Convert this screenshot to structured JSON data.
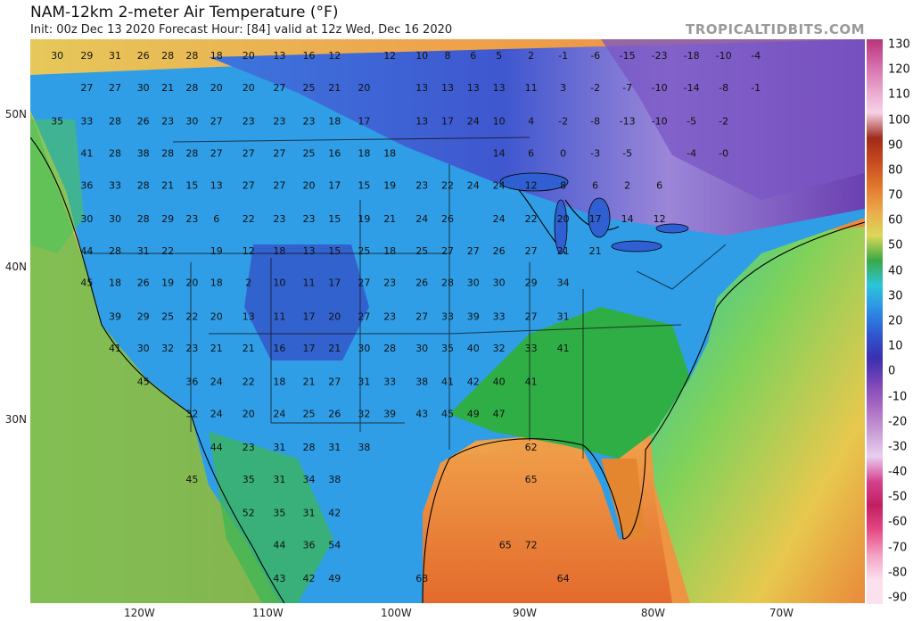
{
  "header": {
    "title": "NAM-12km 2-meter Air Temperature (°F)",
    "subtitle": "Init: 00z Dec 13 2020   Forecast Hour: [84]   valid at 12z Wed, Dec 16 2020",
    "brand": "TROPICALTIDBITS.COM"
  },
  "axes": {
    "lat_labels": [
      "50N",
      "40N",
      "30N"
    ],
    "lon_labels": [
      "120W",
      "110W",
      "100W",
      "90W",
      "80W",
      "70W"
    ]
  },
  "colorbar": {
    "labels": [
      "130",
      "120",
      "110",
      "100",
      "90",
      "80",
      "70",
      "60",
      "50",
      "40",
      "30",
      "20",
      "10",
      "0",
      "-10",
      "-20",
      "-30",
      "-40",
      "-50",
      "-60",
      "-70",
      "-80",
      "-90"
    ],
    "colors": [
      "#b9347a",
      "#d36aa8",
      "#e8a2cb",
      "#f6d3e7",
      "#a02a1a",
      "#c84a20",
      "#e2782e",
      "#eca94a",
      "#dcd85a",
      "#3aa843",
      "#2bc6d9",
      "#2e8fe6",
      "#2f58cf",
      "#3a2fb0",
      "#7b46b6",
      "#a96bc4",
      "#c99ed6",
      "#e9d0ef",
      "#d4428e",
      "#c11e60",
      "#e54b85",
      "#f3a0c2",
      "#fbe0ee"
    ]
  },
  "temperature_labels": [
    {
      "v": "30",
      "lon": -126.4,
      "lat": 53.7
    },
    {
      "v": "29",
      "lon": -124.1,
      "lat": 53.7
    },
    {
      "v": "31",
      "lon": -121.9,
      "lat": 53.7
    },
    {
      "v": "26",
      "lon": -119.7,
      "lat": 53.7
    },
    {
      "v": "28",
      "lon": -117.8,
      "lat": 53.7
    },
    {
      "v": "28",
      "lon": -115.9,
      "lat": 53.7
    },
    {
      "v": "18",
      "lon": -114.0,
      "lat": 53.7
    },
    {
      "v": "20",
      "lon": -111.5,
      "lat": 53.7
    },
    {
      "v": "13",
      "lon": -109.1,
      "lat": 53.7
    },
    {
      "v": "16",
      "lon": -106.8,
      "lat": 53.7
    },
    {
      "v": "12",
      "lon": -104.8,
      "lat": 53.7
    },
    {
      "v": "12",
      "lon": -100.5,
      "lat": 53.7
    },
    {
      "v": "10",
      "lon": -98.0,
      "lat": 53.7
    },
    {
      "v": "8",
      "lon": -96.0,
      "lat": 53.7
    },
    {
      "v": "6",
      "lon": -94.0,
      "lat": 53.7
    },
    {
      "v": "5",
      "lon": -92.0,
      "lat": 53.7
    },
    {
      "v": "2",
      "lon": -89.5,
      "lat": 53.7
    },
    {
      "v": "-1",
      "lon": -87.0,
      "lat": 53.7
    },
    {
      "v": "-6",
      "lon": -84.5,
      "lat": 53.7
    },
    {
      "v": "-15",
      "lon": -82.0,
      "lat": 53.7
    },
    {
      "v": "-23",
      "lon": -79.5,
      "lat": 53.7
    },
    {
      "v": "-18",
      "lon": -77.0,
      "lat": 53.7
    },
    {
      "v": "-10",
      "lon": -74.5,
      "lat": 53.7
    },
    {
      "v": "-4",
      "lon": -72.0,
      "lat": 53.7
    },
    {
      "v": "27",
      "lon": -124.1,
      "lat": 51.6
    },
    {
      "v": "27",
      "lon": -121.9,
      "lat": 51.6
    },
    {
      "v": "30",
      "lon": -119.7,
      "lat": 51.6
    },
    {
      "v": "21",
      "lon": -117.8,
      "lat": 51.6
    },
    {
      "v": "28",
      "lon": -115.9,
      "lat": 51.6
    },
    {
      "v": "20",
      "lon": -114.0,
      "lat": 51.6
    },
    {
      "v": "20",
      "lon": -111.5,
      "lat": 51.6
    },
    {
      "v": "27",
      "lon": -109.1,
      "lat": 51.6
    },
    {
      "v": "25",
      "lon": -106.8,
      "lat": 51.6
    },
    {
      "v": "21",
      "lon": -104.8,
      "lat": 51.6
    },
    {
      "v": "20",
      "lon": -102.5,
      "lat": 51.6
    },
    {
      "v": "13",
      "lon": -98.0,
      "lat": 51.6
    },
    {
      "v": "13",
      "lon": -96.0,
      "lat": 51.6
    },
    {
      "v": "13",
      "lon": -94.0,
      "lat": 51.6
    },
    {
      "v": "13",
      "lon": -92.0,
      "lat": 51.6
    },
    {
      "v": "11",
      "lon": -89.5,
      "lat": 51.6
    },
    {
      "v": "3",
      "lon": -87.0,
      "lat": 51.6
    },
    {
      "v": "-2",
      "lon": -84.5,
      "lat": 51.6
    },
    {
      "v": "-7",
      "lon": -82.0,
      "lat": 51.6
    },
    {
      "v": "-10",
      "lon": -79.5,
      "lat": 51.6
    },
    {
      "v": "-14",
      "lon": -77.0,
      "lat": 51.6
    },
    {
      "v": "-8",
      "lon": -74.5,
      "lat": 51.6
    },
    {
      "v": "-1",
      "lon": -72.0,
      "lat": 51.6
    },
    {
      "v": "35",
      "lon": -126.4,
      "lat": 49.4
    },
    {
      "v": "33",
      "lon": -124.1,
      "lat": 49.4
    },
    {
      "v": "28",
      "lon": -121.9,
      "lat": 49.4
    },
    {
      "v": "26",
      "lon": -119.7,
      "lat": 49.4
    },
    {
      "v": "23",
      "lon": -117.8,
      "lat": 49.4
    },
    {
      "v": "30",
      "lon": -115.9,
      "lat": 49.4
    },
    {
      "v": "27",
      "lon": -114.0,
      "lat": 49.4
    },
    {
      "v": "23",
      "lon": -111.5,
      "lat": 49.4
    },
    {
      "v": "23",
      "lon": -109.1,
      "lat": 49.4
    },
    {
      "v": "23",
      "lon": -106.8,
      "lat": 49.4
    },
    {
      "v": "18",
      "lon": -104.8,
      "lat": 49.4
    },
    {
      "v": "17",
      "lon": -102.5,
      "lat": 49.4
    },
    {
      "v": "13",
      "lon": -98.0,
      "lat": 49.4
    },
    {
      "v": "17",
      "lon": -96.0,
      "lat": 49.4
    },
    {
      "v": "24",
      "lon": -94.0,
      "lat": 49.4
    },
    {
      "v": "10",
      "lon": -92.0,
      "lat": 49.4
    },
    {
      "v": "4",
      "lon": -89.5,
      "lat": 49.4
    },
    {
      "v": "-2",
      "lon": -87.0,
      "lat": 49.4
    },
    {
      "v": "-8",
      "lon": -84.5,
      "lat": 49.4
    },
    {
      "v": "-13",
      "lon": -82.0,
      "lat": 49.4
    },
    {
      "v": "-10",
      "lon": -79.5,
      "lat": 49.4
    },
    {
      "v": "-5",
      "lon": -77.0,
      "lat": 49.4
    },
    {
      "v": "-2",
      "lon": -74.5,
      "lat": 49.4
    },
    {
      "v": "41",
      "lon": -124.1,
      "lat": 47.3
    },
    {
      "v": "28",
      "lon": -121.9,
      "lat": 47.3
    },
    {
      "v": "38",
      "lon": -119.7,
      "lat": 47.3
    },
    {
      "v": "28",
      "lon": -117.8,
      "lat": 47.3
    },
    {
      "v": "28",
      "lon": -115.9,
      "lat": 47.3
    },
    {
      "v": "27",
      "lon": -114.0,
      "lat": 47.3
    },
    {
      "v": "27",
      "lon": -111.5,
      "lat": 47.3
    },
    {
      "v": "27",
      "lon": -109.1,
      "lat": 47.3
    },
    {
      "v": "25",
      "lon": -106.8,
      "lat": 47.3
    },
    {
      "v": "16",
      "lon": -104.8,
      "lat": 47.3
    },
    {
      "v": "18",
      "lon": -102.5,
      "lat": 47.3
    },
    {
      "v": "18",
      "lon": -100.5,
      "lat": 47.3
    },
    {
      "v": "14",
      "lon": -92.0,
      "lat": 47.3
    },
    {
      "v": "6",
      "lon": -89.5,
      "lat": 47.3
    },
    {
      "v": "0",
      "lon": -87.0,
      "lat": 47.3
    },
    {
      "v": "-3",
      "lon": -84.5,
      "lat": 47.3
    },
    {
      "v": "-5",
      "lon": -82.0,
      "lat": 47.3
    },
    {
      "v": "-4",
      "lon": -77.0,
      "lat": 47.3
    },
    {
      "v": "-0",
      "lon": -74.5,
      "lat": 47.3
    },
    {
      "v": "36",
      "lon": -124.1,
      "lat": 45.2
    },
    {
      "v": "33",
      "lon": -121.9,
      "lat": 45.2
    },
    {
      "v": "28",
      "lon": -119.7,
      "lat": 45.2
    },
    {
      "v": "21",
      "lon": -117.8,
      "lat": 45.2
    },
    {
      "v": "15",
      "lon": -115.9,
      "lat": 45.2
    },
    {
      "v": "13",
      "lon": -114.0,
      "lat": 45.2
    },
    {
      "v": "27",
      "lon": -111.5,
      "lat": 45.2
    },
    {
      "v": "27",
      "lon": -109.1,
      "lat": 45.2
    },
    {
      "v": "20",
      "lon": -106.8,
      "lat": 45.2
    },
    {
      "v": "17",
      "lon": -104.8,
      "lat": 45.2
    },
    {
      "v": "15",
      "lon": -102.5,
      "lat": 45.2
    },
    {
      "v": "19",
      "lon": -100.5,
      "lat": 45.2
    },
    {
      "v": "23",
      "lon": -98.0,
      "lat": 45.2
    },
    {
      "v": "22",
      "lon": -96.0,
      "lat": 45.2
    },
    {
      "v": "24",
      "lon": -94.0,
      "lat": 45.2
    },
    {
      "v": "24",
      "lon": -92.0,
      "lat": 45.2
    },
    {
      "v": "12",
      "lon": -89.5,
      "lat": 45.2
    },
    {
      "v": "8",
      "lon": -87.0,
      "lat": 45.2
    },
    {
      "v": "6",
      "lon": -84.5,
      "lat": 45.2
    },
    {
      "v": "2",
      "lon": -82.0,
      "lat": 45.2
    },
    {
      "v": "6",
      "lon": -79.5,
      "lat": 45.2
    },
    {
      "v": "30",
      "lon": -124.1,
      "lat": 43.0
    },
    {
      "v": "30",
      "lon": -121.9,
      "lat": 43.0
    },
    {
      "v": "28",
      "lon": -119.7,
      "lat": 43.0
    },
    {
      "v": "29",
      "lon": -117.8,
      "lat": 43.0
    },
    {
      "v": "23",
      "lon": -115.9,
      "lat": 43.0
    },
    {
      "v": "6",
      "lon": -114.0,
      "lat": 43.0
    },
    {
      "v": "22",
      "lon": -111.5,
      "lat": 43.0
    },
    {
      "v": "23",
      "lon": -109.1,
      "lat": 43.0
    },
    {
      "v": "23",
      "lon": -106.8,
      "lat": 43.0
    },
    {
      "v": "15",
      "lon": -104.8,
      "lat": 43.0
    },
    {
      "v": "19",
      "lon": -102.5,
      "lat": 43.0
    },
    {
      "v": "21",
      "lon": -100.5,
      "lat": 43.0
    },
    {
      "v": "24",
      "lon": -98.0,
      "lat": 43.0
    },
    {
      "v": "26",
      "lon": -96.0,
      "lat": 43.0
    },
    {
      "v": "24",
      "lon": -92.0,
      "lat": 43.0
    },
    {
      "v": "22",
      "lon": -89.5,
      "lat": 43.0
    },
    {
      "v": "20",
      "lon": -87.0,
      "lat": 43.0
    },
    {
      "v": "17",
      "lon": -84.5,
      "lat": 43.0
    },
    {
      "v": "14",
      "lon": -82.0,
      "lat": 43.0
    },
    {
      "v": "12",
      "lon": -79.5,
      "lat": 43.0
    },
    {
      "v": "44",
      "lon": -124.1,
      "lat": 40.9
    },
    {
      "v": "28",
      "lon": -121.9,
      "lat": 40.9
    },
    {
      "v": "31",
      "lon": -119.7,
      "lat": 40.9
    },
    {
      "v": "22",
      "lon": -117.8,
      "lat": 40.9
    },
    {
      "v": "19",
      "lon": -114.0,
      "lat": 40.9
    },
    {
      "v": "12",
      "lon": -111.5,
      "lat": 40.9
    },
    {
      "v": "18",
      "lon": -109.1,
      "lat": 40.9
    },
    {
      "v": "13",
      "lon": -106.8,
      "lat": 40.9
    },
    {
      "v": "15",
      "lon": -104.8,
      "lat": 40.9
    },
    {
      "v": "25",
      "lon": -102.5,
      "lat": 40.9
    },
    {
      "v": "18",
      "lon": -100.5,
      "lat": 40.9
    },
    {
      "v": "25",
      "lon": -98.0,
      "lat": 40.9
    },
    {
      "v": "27",
      "lon": -96.0,
      "lat": 40.9
    },
    {
      "v": "27",
      "lon": -94.0,
      "lat": 40.9
    },
    {
      "v": "26",
      "lon": -92.0,
      "lat": 40.9
    },
    {
      "v": "27",
      "lon": -89.5,
      "lat": 40.9
    },
    {
      "v": "21",
      "lon": -87.0,
      "lat": 40.9
    },
    {
      "v": "21",
      "lon": -84.5,
      "lat": 40.9
    },
    {
      "v": "45",
      "lon": -124.1,
      "lat": 38.8
    },
    {
      "v": "18",
      "lon": -121.9,
      "lat": 38.8
    },
    {
      "v": "26",
      "lon": -119.7,
      "lat": 38.8
    },
    {
      "v": "19",
      "lon": -117.8,
      "lat": 38.8
    },
    {
      "v": "20",
      "lon": -115.9,
      "lat": 38.8
    },
    {
      "v": "18",
      "lon": -114.0,
      "lat": 38.8
    },
    {
      "v": "2",
      "lon": -111.5,
      "lat": 38.8
    },
    {
      "v": "10",
      "lon": -109.1,
      "lat": 38.8
    },
    {
      "v": "11",
      "lon": -106.8,
      "lat": 38.8
    },
    {
      "v": "17",
      "lon": -104.8,
      "lat": 38.8
    },
    {
      "v": "27",
      "lon": -102.5,
      "lat": 38.8
    },
    {
      "v": "23",
      "lon": -100.5,
      "lat": 38.8
    },
    {
      "v": "26",
      "lon": -98.0,
      "lat": 38.8
    },
    {
      "v": "28",
      "lon": -96.0,
      "lat": 38.8
    },
    {
      "v": "30",
      "lon": -94.0,
      "lat": 38.8
    },
    {
      "v": "30",
      "lon": -92.0,
      "lat": 38.8
    },
    {
      "v": "29",
      "lon": -89.5,
      "lat": 38.8
    },
    {
      "v": "34",
      "lon": -87.0,
      "lat": 38.8
    },
    {
      "v": "39",
      "lon": -121.9,
      "lat": 36.6
    },
    {
      "v": "29",
      "lon": -119.7,
      "lat": 36.6
    },
    {
      "v": "25",
      "lon": -117.8,
      "lat": 36.6
    },
    {
      "v": "22",
      "lon": -115.9,
      "lat": 36.6
    },
    {
      "v": "20",
      "lon": -114.0,
      "lat": 36.6
    },
    {
      "v": "13",
      "lon": -111.5,
      "lat": 36.6
    },
    {
      "v": "11",
      "lon": -109.1,
      "lat": 36.6
    },
    {
      "v": "17",
      "lon": -106.8,
      "lat": 36.6
    },
    {
      "v": "20",
      "lon": -104.8,
      "lat": 36.6
    },
    {
      "v": "27",
      "lon": -102.5,
      "lat": 36.6
    },
    {
      "v": "23",
      "lon": -100.5,
      "lat": 36.6
    },
    {
      "v": "27",
      "lon": -98.0,
      "lat": 36.6
    },
    {
      "v": "33",
      "lon": -96.0,
      "lat": 36.6
    },
    {
      "v": "39",
      "lon": -94.0,
      "lat": 36.6
    },
    {
      "v": "33",
      "lon": -92.0,
      "lat": 36.6
    },
    {
      "v": "27",
      "lon": -89.5,
      "lat": 36.6
    },
    {
      "v": "31",
      "lon": -87.0,
      "lat": 36.6
    },
    {
      "v": "41",
      "lon": -121.9,
      "lat": 34.5
    },
    {
      "v": "30",
      "lon": -119.7,
      "lat": 34.5
    },
    {
      "v": "32",
      "lon": -117.8,
      "lat": 34.5
    },
    {
      "v": "23",
      "lon": -115.9,
      "lat": 34.5
    },
    {
      "v": "21",
      "lon": -114.0,
      "lat": 34.5
    },
    {
      "v": "21",
      "lon": -111.5,
      "lat": 34.5
    },
    {
      "v": "16",
      "lon": -109.1,
      "lat": 34.5
    },
    {
      "v": "17",
      "lon": -106.8,
      "lat": 34.5
    },
    {
      "v": "21",
      "lon": -104.8,
      "lat": 34.5
    },
    {
      "v": "30",
      "lon": -102.5,
      "lat": 34.5
    },
    {
      "v": "28",
      "lon": -100.5,
      "lat": 34.5
    },
    {
      "v": "30",
      "lon": -98.0,
      "lat": 34.5
    },
    {
      "v": "35",
      "lon": -96.0,
      "lat": 34.5
    },
    {
      "v": "40",
      "lon": -94.0,
      "lat": 34.5
    },
    {
      "v": "32",
      "lon": -92.0,
      "lat": 34.5
    },
    {
      "v": "33",
      "lon": -89.5,
      "lat": 34.5
    },
    {
      "v": "41",
      "lon": -87.0,
      "lat": 34.5
    },
    {
      "v": "45",
      "lon": -119.7,
      "lat": 32.3
    },
    {
      "v": "36",
      "lon": -115.9,
      "lat": 32.3
    },
    {
      "v": "24",
      "lon": -114.0,
      "lat": 32.3
    },
    {
      "v": "22",
      "lon": -111.5,
      "lat": 32.3
    },
    {
      "v": "18",
      "lon": -109.1,
      "lat": 32.3
    },
    {
      "v": "21",
      "lon": -106.8,
      "lat": 32.3
    },
    {
      "v": "27",
      "lon": -104.8,
      "lat": 32.3
    },
    {
      "v": "31",
      "lon": -102.5,
      "lat": 32.3
    },
    {
      "v": "33",
      "lon": -100.5,
      "lat": 32.3
    },
    {
      "v": "38",
      "lon": -98.0,
      "lat": 32.3
    },
    {
      "v": "41",
      "lon": -96.0,
      "lat": 32.3
    },
    {
      "v": "42",
      "lon": -94.0,
      "lat": 32.3
    },
    {
      "v": "40",
      "lon": -92.0,
      "lat": 32.3
    },
    {
      "v": "41",
      "lon": -89.5,
      "lat": 32.3
    },
    {
      "v": "32",
      "lon": -115.9,
      "lat": 30.2
    },
    {
      "v": "24",
      "lon": -114.0,
      "lat": 30.2
    },
    {
      "v": "20",
      "lon": -111.5,
      "lat": 30.2
    },
    {
      "v": "24",
      "lon": -109.1,
      "lat": 30.2
    },
    {
      "v": "25",
      "lon": -106.8,
      "lat": 30.2
    },
    {
      "v": "26",
      "lon": -104.8,
      "lat": 30.2
    },
    {
      "v": "32",
      "lon": -102.5,
      "lat": 30.2
    },
    {
      "v": "39",
      "lon": -100.5,
      "lat": 30.2
    },
    {
      "v": "43",
      "lon": -98.0,
      "lat": 30.2
    },
    {
      "v": "45",
      "lon": -96.0,
      "lat": 30.2
    },
    {
      "v": "49",
      "lon": -94.0,
      "lat": 30.2
    },
    {
      "v": "47",
      "lon": -92.0,
      "lat": 30.2
    },
    {
      "v": "44",
      "lon": -114.0,
      "lat": 28.0
    },
    {
      "v": "23",
      "lon": -111.5,
      "lat": 28.0
    },
    {
      "v": "31",
      "lon": -109.1,
      "lat": 28.0
    },
    {
      "v": "28",
      "lon": -106.8,
      "lat": 28.0
    },
    {
      "v": "31",
      "lon": -104.8,
      "lat": 28.0
    },
    {
      "v": "38",
      "lon": -102.5,
      "lat": 28.0
    },
    {
      "v": "62",
      "lon": -89.5,
      "lat": 28.0
    },
    {
      "v": "45",
      "lon": -115.9,
      "lat": 25.9
    },
    {
      "v": "35",
      "lon": -111.5,
      "lat": 25.9
    },
    {
      "v": "31",
      "lon": -109.1,
      "lat": 25.9
    },
    {
      "v": "34",
      "lon": -106.8,
      "lat": 25.9
    },
    {
      "v": "38",
      "lon": -104.8,
      "lat": 25.9
    },
    {
      "v": "65",
      "lon": -89.5,
      "lat": 25.9
    },
    {
      "v": "52",
      "lon": -111.5,
      "lat": 23.7
    },
    {
      "v": "35",
      "lon": -109.1,
      "lat": 23.7
    },
    {
      "v": "31",
      "lon": -106.8,
      "lat": 23.7
    },
    {
      "v": "42",
      "lon": -104.8,
      "lat": 23.7
    },
    {
      "v": "44",
      "lon": -109.1,
      "lat": 21.6
    },
    {
      "v": "36",
      "lon": -106.8,
      "lat": 21.6
    },
    {
      "v": "54",
      "lon": -104.8,
      "lat": 21.6
    },
    {
      "v": "65",
      "lon": -91.5,
      "lat": 21.6
    },
    {
      "v": "72",
      "lon": -89.5,
      "lat": 21.6
    },
    {
      "v": "43",
      "lon": -109.1,
      "lat": 19.4
    },
    {
      "v": "42",
      "lon": -106.8,
      "lat": 19.4
    },
    {
      "v": "49",
      "lon": -104.8,
      "lat": 19.4
    },
    {
      "v": "68",
      "lon": -98.0,
      "lat": 19.4
    },
    {
      "v": "64",
      "lon": -87.0,
      "lat": 19.4
    }
  ]
}
